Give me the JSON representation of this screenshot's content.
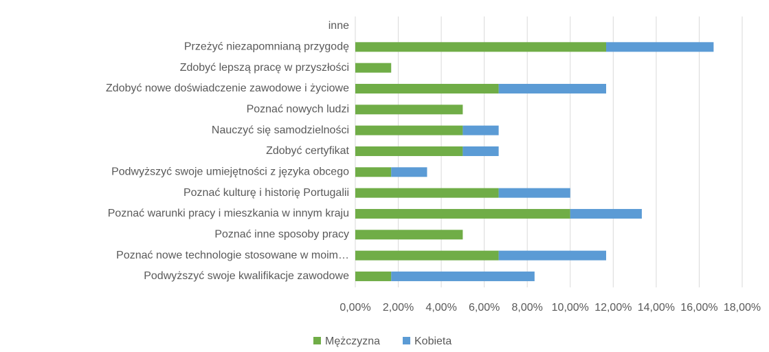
{
  "chart_data": {
    "type": "bar",
    "orientation": "horizontal",
    "stacked": true,
    "categories": [
      "inne",
      "Przeżyć niezapomnianą przygodę",
      "Zdobyć lepszą pracę w przyszłości",
      "Zdobyć nowe doświadczenie zawodowe i życiowe",
      "Poznać nowych ludzi",
      "Nauczyć się samodzielności",
      "Zdobyć certyfikat",
      "Podwyższyć swoje umiejętności z języka obcego",
      "Poznać kulturę i historię Portugalii",
      "Poznać warunki pracy i mieszkania  w innym kraju",
      "Poznać inne sposoby pracy",
      "Poznać nowe technologie stosowane w moim…",
      "Podwyższyć swoje kwalifikacje zawodowe"
    ],
    "series": [
      {
        "name": "Mężczyzna",
        "color": "#70ad47",
        "values": [
          0,
          11.67,
          1.67,
          6.67,
          5,
          5,
          5,
          1.67,
          6.67,
          10,
          5,
          6.67,
          1.67
        ]
      },
      {
        "name": "Kobieta",
        "color": "#5b9bd5",
        "values": [
          0,
          5,
          0,
          5,
          0,
          1.67,
          1.67,
          1.67,
          3.33,
          3.33,
          0,
          5,
          6.67
        ]
      }
    ],
    "xlim": [
      0,
      18
    ],
    "xticks": [
      {
        "value": 0,
        "label": "0,00%"
      },
      {
        "value": 2,
        "label": "2,00%"
      },
      {
        "value": 4,
        "label": "4,00%"
      },
      {
        "value": 6,
        "label": "6,00%"
      },
      {
        "value": 8,
        "label": "8,00%"
      },
      {
        "value": 10,
        "label": "10,00%"
      },
      {
        "value": 12,
        "label": "12,00%"
      },
      {
        "value": 14,
        "label": "14,00%"
      },
      {
        "value": 16,
        "label": "16,00%"
      },
      {
        "value": 18,
        "label": "18,00%"
      }
    ],
    "grid": true,
    "legend": "bottom"
  }
}
